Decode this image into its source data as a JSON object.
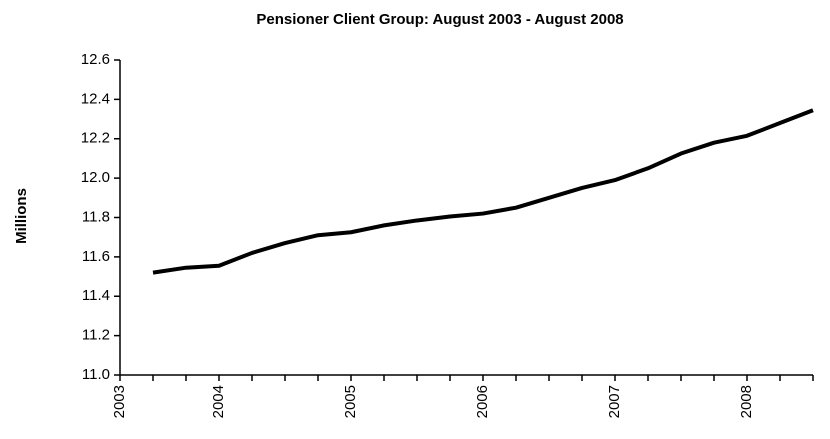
{
  "chart_data": {
    "type": "line",
    "title": "Pensioner Client Group: August 2003 - August 2008",
    "y_label": "Millions",
    "categories": [
      "2003",
      null,
      null,
      "2004",
      null,
      null,
      null,
      "2005",
      null,
      null,
      null,
      "2006",
      null,
      null,
      null,
      "2007",
      null,
      null,
      null,
      "2008",
      null,
      null
    ],
    "values": [
      null,
      11.52,
      11.545,
      11.555,
      11.62,
      11.67,
      11.71,
      11.725,
      11.76,
      11.785,
      11.805,
      11.82,
      11.85,
      11.9,
      11.95,
      11.99,
      12.05,
      12.125,
      12.18,
      12.215,
      12.28,
      12.345
    ],
    "color": "#000000",
    "ylim": [
      11.0,
      12.6
    ],
    "yticks": [
      {
        "value": 11.0,
        "label": "11.0"
      },
      11.2,
      11.4,
      11.6,
      11.8,
      {
        "value": 12.0,
        "label": "12.0"
      },
      12.2,
      12.4,
      12.6
    ]
  }
}
